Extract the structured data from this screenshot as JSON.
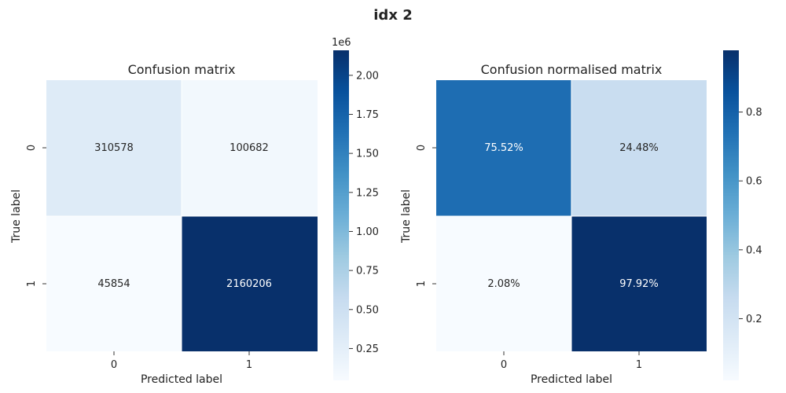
{
  "figure": {
    "title": "idx 2"
  },
  "chart_data": [
    {
      "type": "heatmap",
      "title": "Confusion matrix",
      "xlabel": "Predicted label",
      "ylabel": "True label",
      "x_categories": [
        "0",
        "1"
      ],
      "y_categories": [
        "0",
        "1"
      ],
      "values": [
        [
          310578,
          100682
        ],
        [
          45854,
          2160206
        ]
      ],
      "cell_labels": [
        [
          "310578",
          "100682"
        ],
        [
          "45854",
          "2160206"
        ]
      ],
      "colormap": "Blues",
      "colorbar": {
        "range": [
          45854,
          2160206
        ],
        "ticks": [
          250000,
          500000,
          750000,
          1000000,
          1250000,
          1500000,
          1750000,
          2000000
        ],
        "tick_labels": [
          "0.25",
          "0.50",
          "0.75",
          "1.00",
          "1.25",
          "1.50",
          "1.75",
          "2.00"
        ],
        "offset_label": "1e6"
      }
    },
    {
      "type": "heatmap",
      "title": "Confusion normalised matrix",
      "xlabel": "Predicted label",
      "ylabel": "True label",
      "x_categories": [
        "0",
        "1"
      ],
      "y_categories": [
        "0",
        "1"
      ],
      "values": [
        [
          0.7552,
          0.2448
        ],
        [
          0.0208,
          0.9792
        ]
      ],
      "cell_labels": [
        [
          "75.52%",
          "24.48%"
        ],
        [
          "2.08%",
          "97.92%"
        ]
      ],
      "colormap": "Blues",
      "colorbar": {
        "range": [
          0.0208,
          0.9792
        ],
        "ticks": [
          0.2,
          0.4,
          0.6,
          0.8
        ],
        "tick_labels": [
          "0.2",
          "0.4",
          "0.6",
          "0.8"
        ],
        "offset_label": ""
      }
    }
  ]
}
